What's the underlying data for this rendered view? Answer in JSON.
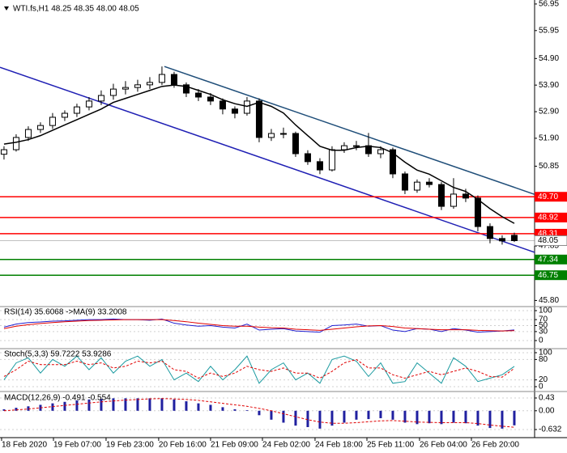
{
  "chart_data": [
    {
      "type": "candlestick",
      "title": "WTI.fs,H1  48.25 48.35 48.00 48.05",
      "xlim": [
        -0.33,
        43.67
      ],
      "ylim": [
        45.6,
        57.1
      ],
      "yticks": [
        56.95,
        55.95,
        {
          "value": 54.9,
          "label": "54.90"
        },
        {
          "value": 53.9,
          "label": "53.90"
        },
        {
          "value": 52.9,
          "label": "52.90"
        },
        {
          "value": 51.9,
          "label": "51.90"
        },
        50.85,
        47.85,
        {
          "value": 45.8,
          "label": "45.80"
        }
      ],
      "xticks": [
        {
          "value": -0.2,
          "label": "18 Feb 2020"
        },
        {
          "value": 4.07,
          "label": "19 Feb 07:00"
        },
        {
          "value": 8.4,
          "label": "19 Feb 23:00"
        },
        {
          "value": 12.73,
          "label": "20 Feb 16:00"
        },
        {
          "value": 17,
          "label": "21 Feb 09:00"
        },
        {
          "value": 21.27,
          "label": "24 Feb 02:00"
        },
        {
          "value": 25.6,
          "label": "24 Feb 18:00"
        },
        {
          "value": 29.87,
          "label": "25 Feb 11:00"
        },
        {
          "value": 34.2,
          "label": "26 Feb 04:00"
        },
        {
          "value": 38.47,
          "label": "26 Feb 20:00"
        }
      ],
      "open": [
        51.3,
        51.47,
        51.93,
        52.23,
        52.38,
        52.69,
        52.84,
        53.08,
        53.3,
        53.51,
        53.75,
        53.81,
        53.91,
        54.0,
        54.3,
        53.91,
        53.6,
        53.45,
        53.3,
        53.0,
        52.84,
        53.3,
        51.93,
        52.08,
        52.08,
        51.32,
        51.02,
        50.71,
        51.47,
        51.62,
        51.62,
        51.32,
        51.47,
        50.56,
        49.95,
        50.25,
        50.16,
        49.34,
        49.8,
        49.65,
        48.58,
        48.13,
        48.25
      ],
      "high": [
        51.6,
        52.05,
        52.35,
        52.5,
        52.85,
        52.95,
        53.2,
        53.45,
        53.7,
        53.95,
        54.05,
        54.1,
        54.2,
        54.6,
        54.4,
        54.0,
        53.75,
        53.6,
        53.4,
        53.1,
        53.45,
        53.4,
        52.25,
        52.3,
        52.15,
        51.45,
        51.15,
        51.6,
        51.75,
        51.8,
        52.1,
        51.6,
        51.55,
        50.65,
        50.35,
        50.4,
        50.25,
        50.4,
        50.0,
        49.75,
        48.7,
        48.25,
        48.35
      ],
      "low": [
        51.1,
        51.4,
        51.8,
        52.1,
        52.25,
        52.55,
        52.7,
        52.95,
        53.15,
        53.35,
        53.55,
        53.65,
        53.75,
        53.9,
        53.8,
        53.45,
        53.3,
        53.15,
        52.8,
        52.65,
        52.75,
        51.75,
        51.8,
        51.9,
        51.2,
        50.9,
        50.55,
        50.65,
        51.35,
        51.45,
        51.2,
        51.15,
        50.4,
        49.8,
        49.85,
        50.05,
        49.2,
        49.25,
        49.5,
        48.4,
        47.95,
        47.9,
        48.0
      ],
      "close": [
        51.47,
        51.93,
        52.23,
        52.38,
        52.69,
        52.84,
        53.08,
        53.3,
        53.51,
        53.75,
        53.81,
        53.91,
        54.0,
        54.3,
        53.91,
        53.6,
        53.45,
        53.3,
        53.0,
        52.84,
        53.3,
        51.93,
        52.08,
        52.08,
        51.32,
        51.02,
        50.71,
        51.47,
        51.62,
        51.62,
        51.32,
        51.47,
        50.56,
        49.95,
        50.25,
        50.16,
        49.34,
        49.8,
        49.65,
        48.58,
        48.13,
        48.04,
        48.05
      ],
      "ma_values": [
        51.68,
        51.75,
        51.85,
        52.0,
        52.2,
        52.4,
        52.6,
        52.8,
        53.0,
        53.25,
        53.4,
        53.55,
        53.7,
        53.85,
        53.9,
        53.85,
        53.7,
        53.55,
        53.35,
        53.2,
        53.1,
        53.25,
        53.1,
        52.85,
        52.4,
        52.0,
        51.6,
        51.45,
        51.45,
        51.55,
        51.6,
        51.55,
        51.35,
        51.0,
        50.7,
        50.55,
        50.3,
        50.05,
        49.9,
        49.6,
        49.25,
        48.95,
        48.7
      ],
      "ma_color": "#000000",
      "trendlines": [
        {
          "x": [
            13.2,
            43.67
          ],
          "y": [
            54.6,
            49.79
          ],
          "color": "#1f4e79"
        },
        {
          "x": [
            -0.33,
            43.67
          ],
          "y": [
            54.57,
            47.61
          ],
          "color": "#1f1fb4"
        }
      ],
      "levels": [
        {
          "value": 49.7,
          "label": "49.70",
          "color": "#ff0000"
        },
        {
          "value": 48.92,
          "label": "48.92",
          "color": "#ff0000"
        },
        {
          "value": 48.31,
          "label": "48.31",
          "color": "#ff0000"
        },
        {
          "value": 47.34,
          "label": "47.34",
          "color": "#008000"
        },
        {
          "value": 46.75,
          "label": "46.75",
          "color": "#008000"
        }
      ],
      "last": 48.05
    },
    {
      "type": "line",
      "title": "RSI(14) 35.6068  ->MA(9) 33.2008",
      "ylim": [
        0,
        100
      ],
      "yticks": [
        100,
        70,
        50,
        30,
        0
      ],
      "series": [
        {
          "color": "#1f1fd0",
          "style": "solid",
          "values": [
            45,
            55,
            60,
            62,
            65,
            66,
            68,
            70,
            70,
            72,
            70,
            70,
            68,
            72,
            58,
            52,
            48,
            50,
            45,
            42,
            55,
            35,
            38,
            40,
            32,
            30,
            28,
            50,
            52,
            55,
            48,
            50,
            35,
            30,
            40,
            38,
            30,
            40,
            35,
            28,
            30,
            32,
            35.6068
          ]
        },
        {
          "color": "#e00000",
          "style": "solid",
          "values": [
            40,
            48,
            53,
            57,
            60,
            63,
            65,
            67,
            68,
            69,
            70,
            70,
            70,
            70,
            67,
            63,
            58,
            54,
            50,
            48,
            48,
            45,
            43,
            42,
            38,
            36,
            34,
            38,
            42,
            46,
            49,
            50,
            47,
            42,
            40,
            38,
            36,
            36,
            36,
            34,
            33,
            32,
            33.2008
          ]
        }
      ]
    },
    {
      "type": "line",
      "title": "Stoch(5,3,3) 59.7222 53.9286",
      "ylim": [
        0,
        100
      ],
      "yticks": [
        100,
        80,
        20,
        0
      ],
      "series": [
        {
          "color": "#1a9aa0",
          "style": "solid",
          "values": [
            20,
            70,
            85,
            40,
            80,
            60,
            90,
            50,
            85,
            40,
            75,
            90,
            60,
            80,
            20,
            40,
            15,
            60,
            20,
            50,
            90,
            10,
            50,
            70,
            20,
            40,
            10,
            80,
            90,
            75,
            30,
            70,
            10,
            15,
            70,
            40,
            10,
            85,
            60,
            15,
            25,
            35,
            59.7222
          ]
        },
        {
          "color": "#e00000",
          "style": "dashed",
          "values": [
            30,
            50,
            75,
            65,
            65,
            65,
            75,
            65,
            70,
            55,
            60,
            75,
            70,
            75,
            50,
            45,
            25,
            40,
            30,
            40,
            60,
            50,
            45,
            55,
            40,
            40,
            25,
            45,
            70,
            80,
            55,
            55,
            35,
            25,
            35,
            45,
            35,
            45,
            55,
            45,
            30,
            28,
            53.9286
          ]
        }
      ]
    },
    {
      "type": "line",
      "title": "MACD(12,26,9) -0.491 -0.554",
      "ylim": [
        -0.632,
        0.43
      ],
      "yticks": [
        0.43,
        {
          "value": 0,
          "label": "0.00"
        },
        -0.632
      ],
      "series": [
        {
          "color": "#2020a0",
          "style": "bars",
          "values": [
            0.05,
            0.1,
            0.15,
            0.2,
            0.25,
            0.3,
            0.35,
            0.38,
            0.4,
            0.42,
            0.42,
            0.42,
            0.42,
            0.42,
            0.38,
            0.32,
            0.25,
            0.2,
            0.12,
            0.05,
            0.02,
            -0.15,
            -0.3,
            -0.4,
            -0.5,
            -0.55,
            -0.6,
            -0.5,
            -0.4,
            -0.3,
            -0.28,
            -0.25,
            -0.3,
            -0.4,
            -0.45,
            -0.42,
            -0.45,
            -0.4,
            -0.42,
            -0.5,
            -0.58,
            -0.6,
            -0.491
          ]
        },
        {
          "color": "#e00000",
          "style": "dashed",
          "values": [
            0.0,
            0.03,
            0.06,
            0.1,
            0.14,
            0.18,
            0.22,
            0.26,
            0.3,
            0.33,
            0.36,
            0.38,
            0.4,
            0.41,
            0.4,
            0.38,
            0.35,
            0.3,
            0.25,
            0.2,
            0.15,
            0.08,
            0.0,
            -0.1,
            -0.2,
            -0.3,
            -0.38,
            -0.42,
            -0.42,
            -0.4,
            -0.37,
            -0.34,
            -0.33,
            -0.35,
            -0.38,
            -0.39,
            -0.4,
            -0.4,
            -0.4,
            -0.43,
            -0.48,
            -0.52,
            -0.554
          ]
        }
      ]
    }
  ]
}
